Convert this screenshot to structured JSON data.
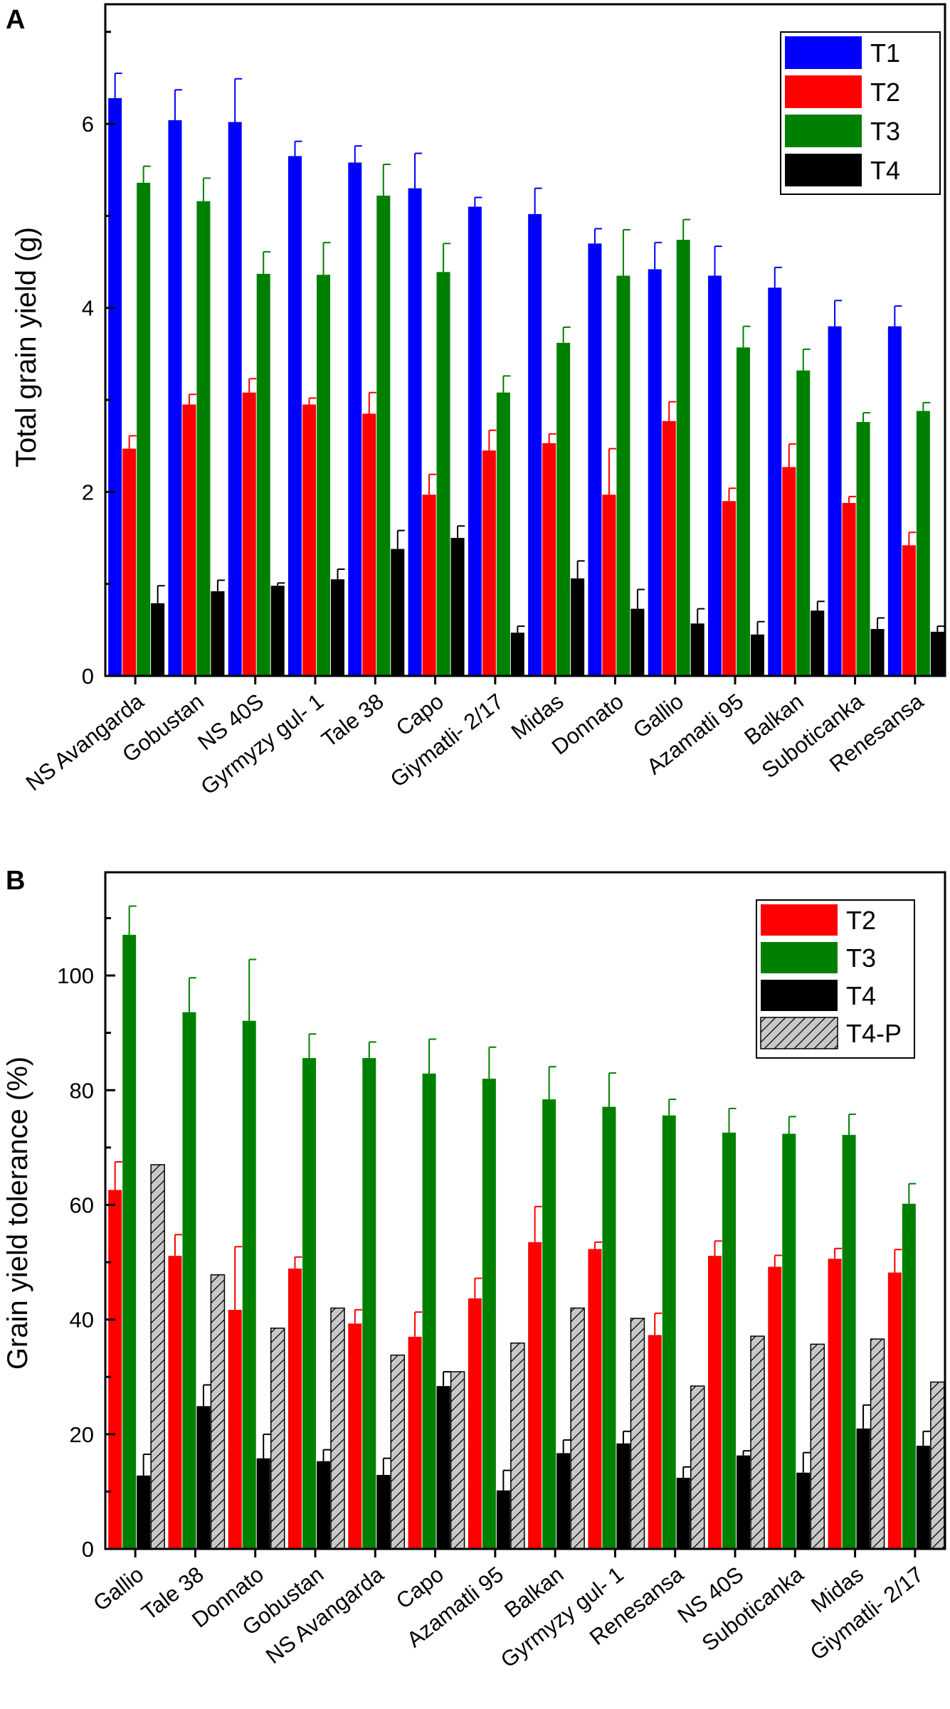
{
  "colors": {
    "T1": "#0000ff",
    "T2": "#ff0000",
    "T3": "#008000",
    "T4": "#000000",
    "T4-P": "#c0c0c0"
  },
  "chart_data": [
    {
      "panel_label": "A",
      "type": "bar",
      "ylabel": "Total grain yield (g)",
      "xlabel": "",
      "ylim": [
        0,
        7.3
      ],
      "yticks": [
        0,
        2,
        4,
        6
      ],
      "legend_position": "top-right",
      "categories": [
        "NS Avangarda",
        "Gobustan",
        "NS 40S",
        "Gyrmyzy gul- 1",
        "Tale 38",
        "Capo",
        "Giymatli- 2/17",
        "Midas",
        "Donnato",
        "Gallio",
        "Azamatli 95",
        "Balkan",
        "Suboticanka",
        "Renesansa"
      ],
      "series": [
        {
          "name": "T1",
          "values": [
            6.28,
            6.04,
            6.02,
            5.65,
            5.58,
            5.3,
            5.1,
            5.02,
            4.7,
            4.42,
            4.35,
            4.22,
            3.8,
            3.8
          ],
          "errors": [
            0.27,
            0.33,
            0.47,
            0.16,
            0.18,
            0.38,
            0.1,
            0.28,
            0.16,
            0.29,
            0.32,
            0.22,
            0.28,
            0.22
          ]
        },
        {
          "name": "T2",
          "values": [
            2.47,
            2.95,
            3.08,
            2.95,
            2.85,
            1.97,
            2.45,
            2.53,
            1.97,
            2.77,
            1.9,
            2.27,
            1.88,
            1.42
          ],
          "errors": [
            0.14,
            0.11,
            0.15,
            0.07,
            0.23,
            0.22,
            0.22,
            0.1,
            0.5,
            0.21,
            0.14,
            0.25,
            0.07,
            0.14
          ]
        },
        {
          "name": "T3",
          "values": [
            5.36,
            5.16,
            4.37,
            4.36,
            5.22,
            4.39,
            3.08,
            3.62,
            4.35,
            4.74,
            3.57,
            3.32,
            2.76,
            2.88
          ],
          "errors": [
            0.18,
            0.25,
            0.24,
            0.35,
            0.34,
            0.31,
            0.18,
            0.17,
            0.5,
            0.22,
            0.23,
            0.23,
            0.1,
            0.09
          ]
        },
        {
          "name": "T4",
          "values": [
            0.79,
            0.92,
            0.98,
            1.05,
            1.38,
            1.5,
            0.47,
            1.06,
            0.73,
            0.57,
            0.45,
            0.71,
            0.51,
            0.48
          ],
          "errors": [
            0.19,
            0.12,
            0.03,
            0.11,
            0.2,
            0.13,
            0.07,
            0.19,
            0.21,
            0.16,
            0.14,
            0.1,
            0.12,
            0.06
          ]
        }
      ]
    },
    {
      "panel_label": "B",
      "type": "bar",
      "ylabel": "Grain yield tolerance (%)",
      "xlabel": "",
      "ylim": [
        0,
        118
      ],
      "yticks": [
        0,
        20,
        40,
        60,
        80,
        100
      ],
      "legend_position": "top-right",
      "categories": [
        "Gallio",
        "Tale 38",
        "Donnato",
        "Gobustan",
        "NS Avangarda",
        "Capo",
        "Azamatli 95",
        "Balkan",
        "Gyrmyzy gul- 1",
        "Renesansa",
        "NS 40S",
        "Suboticanka",
        "Midas",
        "Giymatli- 2/17"
      ],
      "series": [
        {
          "name": "T2",
          "values": [
            62.6,
            51.1,
            41.7,
            48.9,
            39.3,
            37.0,
            43.7,
            53.5,
            52.3,
            37.3,
            51.1,
            49.2,
            50.6,
            48.2
          ],
          "errors": [
            4.9,
            3.7,
            11.0,
            2.0,
            2.4,
            4.3,
            3.5,
            6.2,
            1.2,
            3.8,
            2.6,
            2.0,
            1.8,
            4.0
          ]
        },
        {
          "name": "T3",
          "values": [
            107.1,
            93.6,
            92.1,
            85.6,
            85.6,
            82.9,
            82.0,
            78.4,
            77.1,
            75.6,
            72.6,
            72.4,
            72.2,
            60.2
          ],
          "errors": [
            5.0,
            6.0,
            10.7,
            4.2,
            2.8,
            6.0,
            5.5,
            5.7,
            5.9,
            2.8,
            4.2,
            3.0,
            3.6,
            3.5
          ]
        },
        {
          "name": "T4",
          "values": [
            12.8,
            24.9,
            15.8,
            15.3,
            12.9,
            28.4,
            10.2,
            16.7,
            18.4,
            12.4,
            16.3,
            13.3,
            21.0,
            18.0
          ],
          "errors": [
            3.7,
            3.7,
            4.2,
            2.0,
            2.9,
            2.5,
            3.5,
            2.3,
            2.1,
            1.9,
            0.8,
            3.5,
            4.1,
            2.5
          ]
        },
        {
          "name": "T4-P",
          "values": [
            67.0,
            47.8,
            38.5,
            42.0,
            33.8,
            30.9,
            35.9,
            42.0,
            40.2,
            28.4,
            37.1,
            35.7,
            36.6,
            29.1
          ],
          "errors": [
            0,
            0,
            0,
            0,
            0,
            0,
            0,
            0,
            0,
            0,
            0,
            0,
            0,
            0
          ]
        }
      ]
    }
  ]
}
